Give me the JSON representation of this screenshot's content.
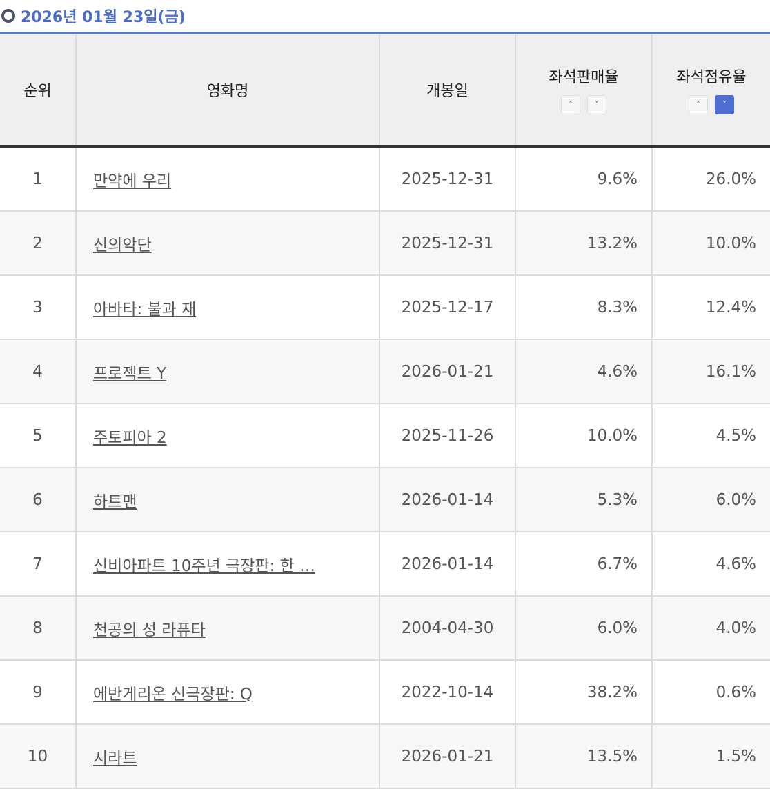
{
  "date_title": "2026년 01월 23일(금)",
  "headers": {
    "rank": "순위",
    "title": "영화명",
    "release": "개봉일",
    "sales_rate": "좌석판매율",
    "occupancy": "좌석점유율"
  },
  "sort": {
    "up_icon": "^",
    "down_icon": "v",
    "active": "occupancy-desc",
    "active_color": "#4e6ed3"
  },
  "rows": [
    {
      "rank": "1",
      "title": "만약에 우리",
      "release": "2025-12-31",
      "sales_rate": "9.6%",
      "occupancy": "26.0%"
    },
    {
      "rank": "2",
      "title": "신의악단",
      "release": "2025-12-31",
      "sales_rate": "13.2%",
      "occupancy": "10.0%"
    },
    {
      "rank": "3",
      "title": "아바타: 불과 재",
      "release": "2025-12-17",
      "sales_rate": "8.3%",
      "occupancy": "12.4%"
    },
    {
      "rank": "4",
      "title": "프로젝트 Y",
      "release": "2026-01-21",
      "sales_rate": "4.6%",
      "occupancy": "16.1%"
    },
    {
      "rank": "5",
      "title": "주토피아 2",
      "release": "2025-11-26",
      "sales_rate": "10.0%",
      "occupancy": "4.5%"
    },
    {
      "rank": "6",
      "title": "하트맨",
      "release": "2026-01-14",
      "sales_rate": "5.3%",
      "occupancy": "6.0%"
    },
    {
      "rank": "7",
      "title": "신비아파트 10주년 극장판: 한 …",
      "release": "2026-01-14",
      "sales_rate": "6.7%",
      "occupancy": "4.6%"
    },
    {
      "rank": "8",
      "title": "천공의 성 라퓨타",
      "release": "2004-04-30",
      "sales_rate": "6.0%",
      "occupancy": "4.0%"
    },
    {
      "rank": "9",
      "title": "에반게리온 신극장판: Q",
      "release": "2022-10-14",
      "sales_rate": "38.2%",
      "occupancy": "0.6%"
    },
    {
      "rank": "10",
      "title": "시라트",
      "release": "2026-01-21",
      "sales_rate": "13.5%",
      "occupancy": "1.5%"
    }
  ]
}
